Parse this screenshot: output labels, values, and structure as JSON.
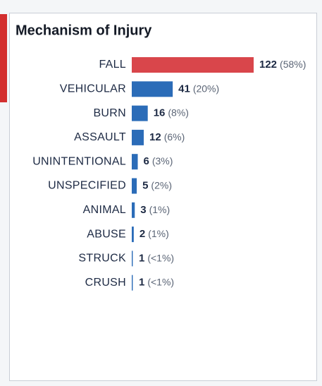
{
  "chart_data": {
    "type": "bar",
    "orientation": "horizontal",
    "title": "Mechanism of Injury",
    "categories": [
      "FALL",
      "VEHICULAR",
      "BURN",
      "ASSAULT",
      "UNINTENTIONAL",
      "UNSPECIFIED",
      "ANIMAL",
      "ABUSE",
      "STRUCK",
      "CRUSH"
    ],
    "values": [
      122,
      41,
      16,
      12,
      6,
      5,
      3,
      2,
      1,
      1
    ],
    "percent_labels": [
      "(58%)",
      "(20%)",
      "(8%)",
      "(6%)",
      "(3%)",
      "(2%)",
      "(1%)",
      "(1%)",
      "(<1%)",
      "(<1%)"
    ],
    "colors": [
      "#d9464b",
      "#2b6cb8",
      "#2b6cb8",
      "#2b6cb8",
      "#2b6cb8",
      "#2b6cb8",
      "#2b6cb8",
      "#2b6cb8",
      "#2b6cb8",
      "#2b6cb8"
    ]
  }
}
